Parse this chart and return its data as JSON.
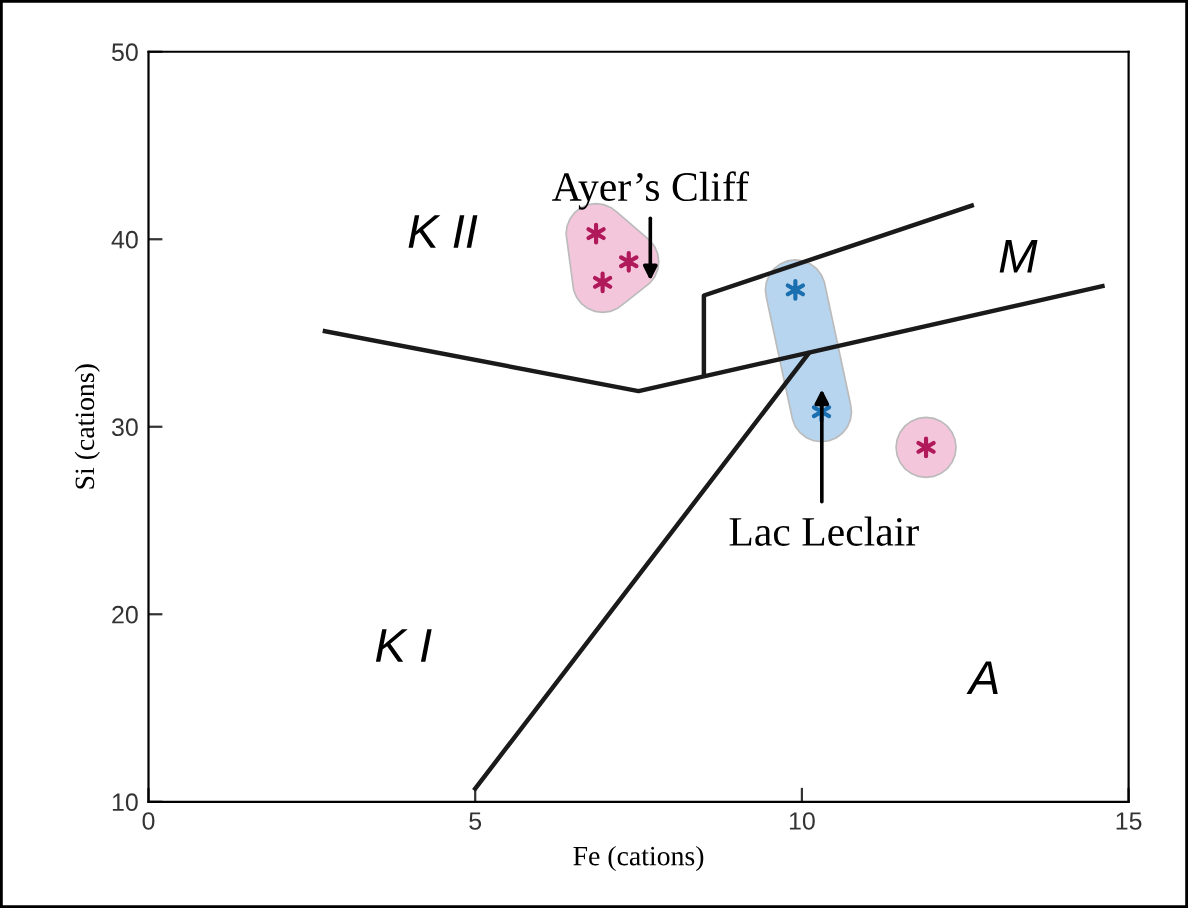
{
  "chart_data": {
    "type": "scatter",
    "xlabel": "Fe (cations)",
    "ylabel": "Si (cations)",
    "xlim": [
      0,
      15
    ],
    "ylim": [
      10,
      50
    ],
    "xticks": [
      0,
      5,
      10,
      15
    ],
    "yticks": [
      10,
      20,
      30,
      40,
      50
    ],
    "grid": false,
    "legend": false,
    "series": [
      {
        "type": "line",
        "color": "#1a1a1a",
        "x": [
          2.7,
          7.5,
          14.6
        ],
        "values": [
          35.1,
          31.9,
          37.5
        ],
        "marker": "none",
        "line_style": "solid"
      },
      {
        "type": "line",
        "color": "#1a1a1a",
        "x": [
          8.5,
          8.5,
          12.6
        ],
        "values": [
          32.8,
          37.0,
          41.8
        ],
        "marker": "none",
        "line_style": "solid"
      },
      {
        "type": "line",
        "color": "#1a1a1a",
        "x": [
          5.0,
          10.1
        ],
        "values": [
          10.7,
          33.9
        ],
        "marker": "none",
        "line_style": "solid"
      },
      {
        "color": "#b0195a",
        "x": [
          6.85,
          7.35,
          6.95
        ],
        "values": [
          40.3,
          38.8,
          37.7
        ],
        "marker": "cross"
      },
      {
        "color": "#1a6fb0",
        "x": [
          9.9,
          10.3
        ],
        "values": [
          37.3,
          30.8
        ],
        "marker": "cross"
      },
      {
        "color": "#b0195a",
        "x": [
          11.9
        ],
        "values": [
          28.9
        ],
        "marker": "cross"
      }
    ],
    "annotations": [
      "K II",
      "M",
      "K I",
      "A",
      "Ayer’s Cliff",
      "Lac Leclair"
    ]
  }
}
